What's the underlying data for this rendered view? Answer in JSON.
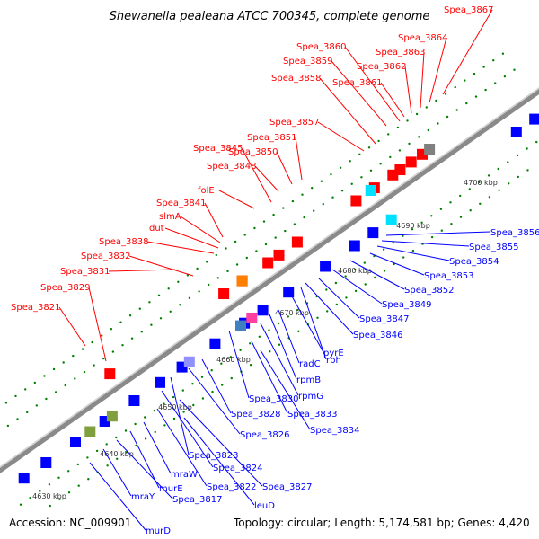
{
  "title": "Shewanella pealeana ATCC 700345, complete genome",
  "accession": "Accession: NC_009901",
  "topology": "Topology: circular; Length: 5,174,581 bp; Genes: 4,420",
  "colors": {
    "forward_label": "#ff0000",
    "reverse_label": "#0000ff",
    "backbone": "#909090",
    "tick": "#008000"
  },
  "kbp_ticks": [
    "4630 kbp",
    "4640 kbp",
    "4650 kbp",
    "4660 kbp",
    "4670 kbp",
    "4680 kbp",
    "4690 kbp",
    "4700 kbp"
  ],
  "forward_labels": [
    "Spea_3821",
    "Spea_3829",
    "Spea_3831",
    "Spea_3832",
    "Spea_3838",
    "dut",
    "slmA",
    "Spea_3841",
    "folE",
    "Spea_3845",
    "Spea_3848",
    "Spea_3850",
    "Spea_3851",
    "Spea_3857",
    "Spea_3858",
    "Spea_3859",
    "Spea_3860",
    "Spea_3861",
    "Spea_3862",
    "Spea_3863",
    "Spea_3864",
    "Spea_3867"
  ],
  "reverse_labels": [
    "Spea_3856",
    "Spea_3855",
    "Spea_3854",
    "Spea_3853",
    "Spea_3852",
    "Spea_3849",
    "Spea_3847",
    "Spea_3846",
    "rph",
    "pyrE",
    "radC",
    "rpmB",
    "rpmG",
    "Spea_3830",
    "Spea_3833",
    "Spea_3834",
    "Spea_3828",
    "Spea_3826",
    "Spea_3823",
    "Spea_3824",
    "Spea_3827",
    "Spea_3822",
    "leuD",
    "mraW",
    "murE",
    "Spea_3817",
    "mraY",
    "murD"
  ]
}
